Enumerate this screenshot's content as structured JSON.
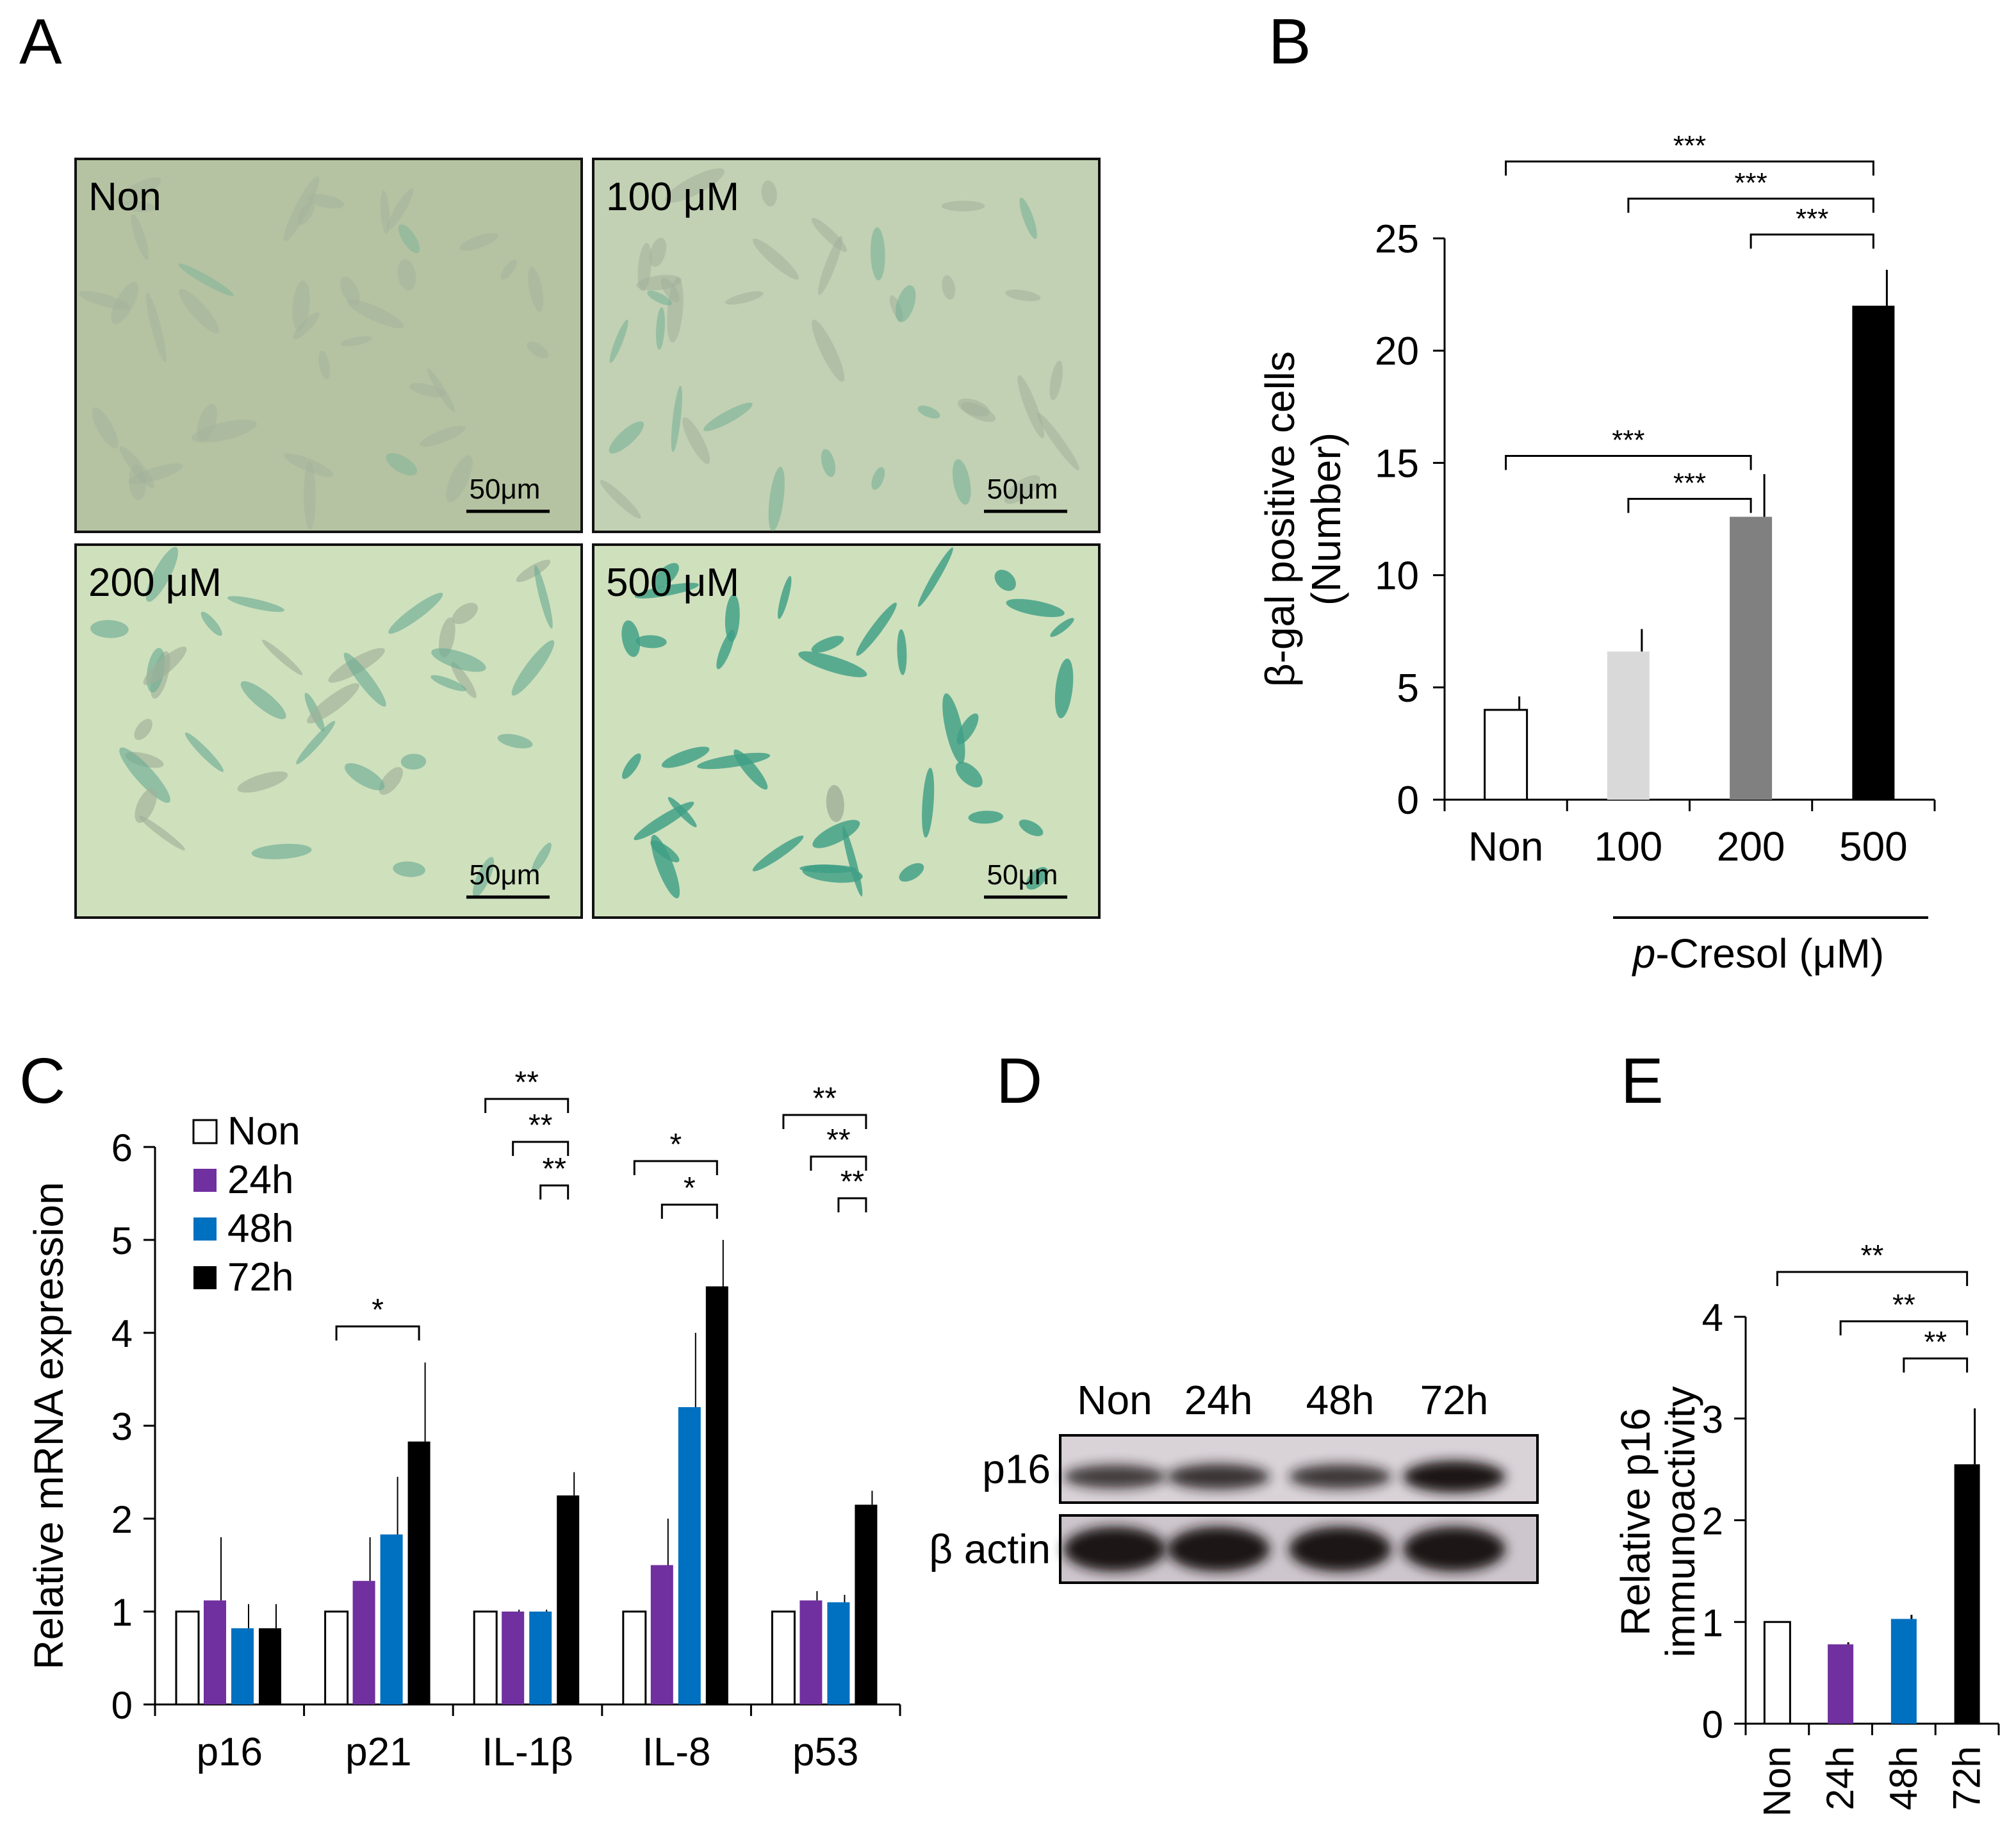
{
  "panels": {
    "a": {
      "letter": "A"
    },
    "b": {
      "letter": "B"
    },
    "c": {
      "letter": "C"
    },
    "d": {
      "letter": "D"
    },
    "e": {
      "letter": "E"
    }
  },
  "micrographs": [
    {
      "label": "Non",
      "scalebar": "50μm",
      "stain": 0.1
    },
    {
      "label": "100 μM",
      "scalebar": "50μm",
      "stain": 0.35
    },
    {
      "label": "200 μM",
      "scalebar": "50μm",
      "stain": 0.6
    },
    {
      "label": "500 μM",
      "scalebar": "50μm",
      "stain": 0.95
    }
  ],
  "western": {
    "lanes": [
      "Non",
      "24h",
      "48h",
      "72h"
    ],
    "rows": [
      {
        "label": "p16",
        "intensity": [
          0.55,
          0.65,
          0.6,
          1.0
        ]
      },
      {
        "label": "β actin",
        "intensity": [
          1.0,
          1.0,
          1.0,
          1.0
        ]
      }
    ]
  },
  "colors": {
    "non": "#ffffff",
    "h24": "#7030a0",
    "h48": "#0070c0",
    "h72": "#000000"
  },
  "chart_data": [
    {
      "panel": "B",
      "type": "bar",
      "categories": [
        "Non",
        "100",
        "200",
        "500"
      ],
      "values": [
        4.0,
        6.6,
        12.6,
        22.0
      ],
      "errors": [
        0.6,
        1.0,
        1.9,
        1.6
      ],
      "colors": [
        "#ffffff",
        "#d9d9d9",
        "#808080",
        "#000000"
      ],
      "ylabel": [
        "β-gal positive cells",
        "(Number)"
      ],
      "xlabel_prefix": "p",
      "xlabel_rest": "-Cresol (μM)",
      "ylim": [
        0,
        25
      ],
      "yticks": [
        0,
        5,
        10,
        15,
        20,
        25
      ],
      "significance": [
        {
          "from": 0,
          "to": 3,
          "label": "***"
        },
        {
          "from": 1,
          "to": 3,
          "label": "***"
        },
        {
          "from": 2,
          "to": 3,
          "label": "***"
        },
        {
          "from": 0,
          "to": 2,
          "label": "***"
        },
        {
          "from": 1,
          "to": 2,
          "label": "***"
        }
      ]
    },
    {
      "panel": "C",
      "type": "bar",
      "categories": [
        "p16",
        "p21",
        "IL-1β",
        "IL-8",
        "p53"
      ],
      "series": [
        {
          "name": "Non",
          "values": [
            1.0,
            1.0,
            1.0,
            1.0,
            1.0
          ],
          "errors": [
            0,
            0,
            0,
            0,
            0
          ]
        },
        {
          "name": "24h",
          "values": [
            1.12,
            1.33,
            1.0,
            1.5,
            1.12
          ],
          "errors": [
            0.68,
            0.47,
            0.02,
            0.5,
            0.1
          ]
        },
        {
          "name": "48h",
          "values": [
            0.82,
            1.83,
            1.0,
            3.2,
            1.1
          ],
          "errors": [
            0.26,
            0.62,
            0.02,
            0.8,
            0.08
          ]
        },
        {
          "name": "72h",
          "values": [
            0.82,
            2.83,
            2.25,
            4.5,
            2.15
          ],
          "errors": [
            0.26,
            0.85,
            0.25,
            0.5,
            0.15
          ]
        }
      ],
      "ylabel": "Relative mRNA expression",
      "ylim": [
        0,
        6
      ],
      "yticks": [
        0,
        1,
        2,
        3,
        4,
        5,
        6
      ],
      "legend": "top-left",
      "significance": [
        {
          "group": 1,
          "from": 0,
          "to": 3,
          "label": "*"
        },
        {
          "group": 2,
          "from": 0,
          "to": 3,
          "label": "**"
        },
        {
          "group": 2,
          "from": 1,
          "to": 3,
          "label": "**"
        },
        {
          "group": 2,
          "from": 2,
          "to": 3,
          "label": "**"
        },
        {
          "group": 3,
          "from": 0,
          "to": 3,
          "label": "*"
        },
        {
          "group": 3,
          "from": 1,
          "to": 3,
          "label": "*"
        },
        {
          "group": 4,
          "from": 0,
          "to": 3,
          "label": "**"
        },
        {
          "group": 4,
          "from": 1,
          "to": 3,
          "label": "**"
        },
        {
          "group": 4,
          "from": 2,
          "to": 3,
          "label": "**"
        }
      ]
    },
    {
      "panel": "E",
      "type": "bar",
      "categories": [
        "Non",
        "24h",
        "48h",
        "72h"
      ],
      "values": [
        1.0,
        0.78,
        1.03,
        2.55
      ],
      "errors": [
        0,
        0.02,
        0.04,
        0.55
      ],
      "colors": [
        "#ffffff",
        "#7030a0",
        "#0070c0",
        "#000000"
      ],
      "ylabel": [
        "Relative p16",
        "immunoactivity"
      ],
      "ylim": [
        0,
        4
      ],
      "yticks": [
        0,
        1,
        2,
        3,
        4
      ],
      "significance": [
        {
          "from": 0,
          "to": 3,
          "label": "**"
        },
        {
          "from": 1,
          "to": 3,
          "label": "**"
        },
        {
          "from": 2,
          "to": 3,
          "label": "**"
        }
      ]
    }
  ]
}
